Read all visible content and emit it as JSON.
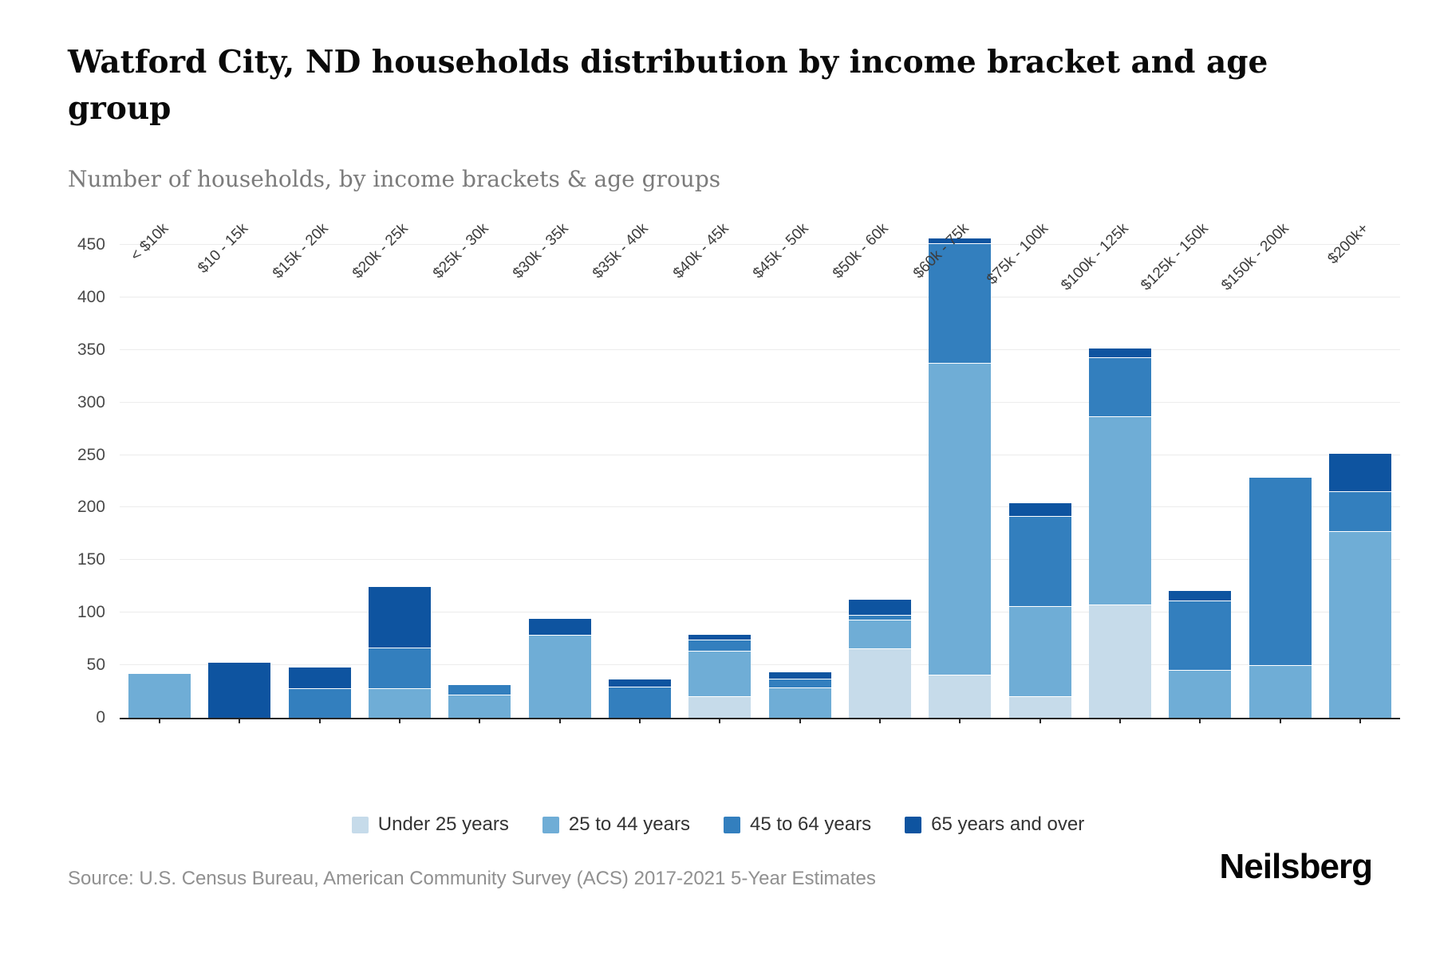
{
  "header": {
    "title": "Watford City, ND households distribution by income bracket and age group",
    "subtitle": "Number of households, by income brackets & age groups"
  },
  "footer": {
    "source": "Source: U.S. Census Bureau, American Community Survey (ACS) 2017-2021 5-Year Estimates",
    "brand": "Neilsberg"
  },
  "colors": {
    "axis": "#262626",
    "gridline": "#ececec",
    "title_text": "#0a0a0a",
    "subtitle_text": "#7b7b7b",
    "source_text": "#909090"
  },
  "chart_data": {
    "type": "bar",
    "stacked": true,
    "title": "Watford City, ND households distribution by income bracket and age group",
    "xlabel": "",
    "ylabel": "Number of households",
    "ylim": [
      0,
      450
    ],
    "yticks": [
      0,
      50,
      100,
      150,
      200,
      250,
      300,
      350,
      400,
      450
    ],
    "grid": true,
    "legend_position": "bottom",
    "categories": [
      "< $10k",
      "$10 - 15k",
      "$15k - 20k",
      "$20k - 25k",
      "$25k - 30k",
      "$30k - 35k",
      "$35k - 40k",
      "$40k - 45k",
      "$45k - 50k",
      "$50k - 60k",
      "$60k - 75k",
      "$75k - 100k",
      "$100k - 125k",
      "$125k - 150k",
      "$150k - 200k",
      "$200k+"
    ],
    "series": [
      {
        "name": "Under 25 years",
        "color": "#c6dbea",
        "values": [
          0,
          0,
          0,
          0,
          0,
          0,
          0,
          20,
          0,
          65,
          40,
          20,
          107,
          0,
          0,
          0
        ]
      },
      {
        "name": "25 to 44 years",
        "color": "#6fadd6",
        "values": [
          42,
          0,
          0,
          27,
          21,
          78,
          0,
          42,
          28,
          27,
          296,
          85,
          178,
          45,
          49,
          177
        ]
      },
      {
        "name": "45 to 64 years",
        "color": "#337fbe",
        "values": [
          0,
          0,
          27,
          38,
          9,
          0,
          29,
          10,
          8,
          4,
          113,
          85,
          56,
          65,
          179,
          37
        ]
      },
      {
        "name": "65 years and over",
        "color": "#0e54a0",
        "values": [
          0,
          52,
          20,
          58,
          0,
          15,
          7,
          5,
          6,
          14,
          5,
          12,
          8,
          9,
          0,
          36
        ]
      }
    ]
  }
}
